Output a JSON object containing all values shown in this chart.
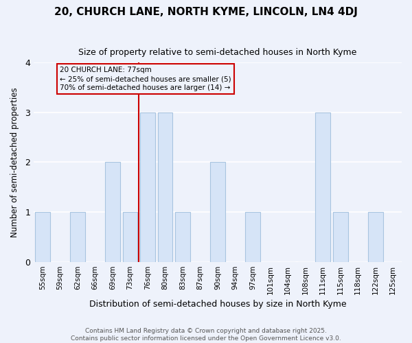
{
  "title": "20, CHURCH LANE, NORTH KYME, LINCOLN, LN4 4DJ",
  "subtitle": "Size of property relative to semi-detached houses in North Kyme",
  "xlabel": "Distribution of semi-detached houses by size in North Kyme",
  "ylabel": "Number of semi-detached properties",
  "bin_labels": [
    "55sqm",
    "59sqm",
    "62sqm",
    "66sqm",
    "69sqm",
    "73sqm",
    "76sqm",
    "80sqm",
    "83sqm",
    "87sqm",
    "90sqm",
    "94sqm",
    "97sqm",
    "101sqm",
    "104sqm",
    "108sqm",
    "111sqm",
    "115sqm",
    "118sqm",
    "122sqm",
    "125sqm"
  ],
  "counts": [
    1,
    0,
    1,
    0,
    2,
    1,
    3,
    3,
    1,
    0,
    2,
    0,
    1,
    0,
    0,
    0,
    3,
    1,
    0,
    1,
    0
  ],
  "subject_bin_index": 6,
  "subject_label": "20 CHURCH LANE: 77sqm\n← 25% of semi-detached houses are smaller (5)\n70% of semi-detached houses are larger (14) →",
  "bar_color": "#d6e4f7",
  "bar_edge_color": "#a8c4e0",
  "subject_line_color": "#cc0000",
  "annotation_box_edge": "#cc0000",
  "background_color": "#eef2fb",
  "grid_color": "#ffffff",
  "footer": "Contains HM Land Registry data © Crown copyright and database right 2025.\nContains public sector information licensed under the Open Government Licence v3.0.",
  "ylim": [
    0,
    4
  ],
  "yticks": [
    0,
    1,
    2,
    3,
    4
  ],
  "title_fontsize": 11,
  "subtitle_fontsize": 9
}
